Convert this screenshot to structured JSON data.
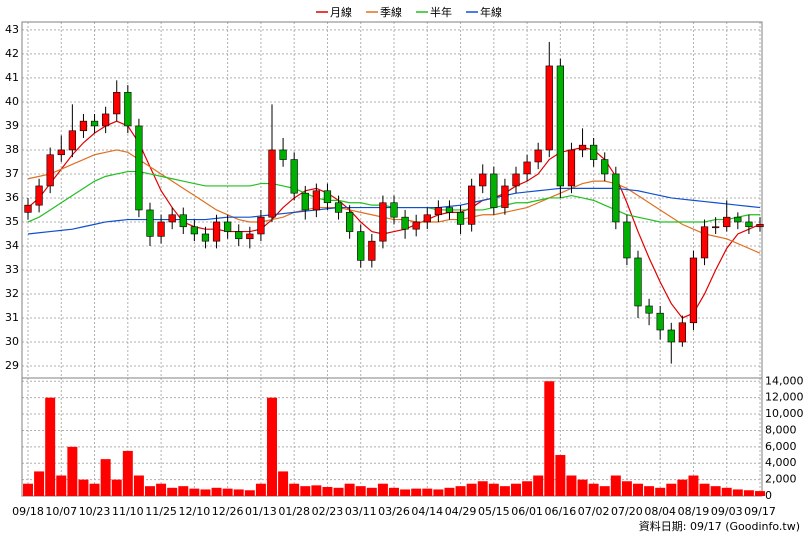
{
  "chart_data": [
    {
      "type": "candlestick",
      "open": [
        35.4,
        35.7,
        36.5,
        37.8,
        38.0,
        38.8,
        39.2,
        39.0,
        39.5,
        40.4,
        39.0,
        35.5,
        34.4,
        35.0,
        35.3,
        34.8,
        34.5,
        34.2,
        35.0,
        34.6,
        34.3,
        34.5,
        35.2,
        38.0,
        37.6,
        36.2,
        35.5,
        36.3,
        35.8,
        35.4,
        34.6,
        33.4,
        34.2,
        35.8,
        35.2,
        34.7,
        35.0,
        35.3,
        35.6,
        35.4,
        34.9,
        36.5,
        37.0,
        35.6,
        36.5,
        37.0,
        37.5,
        38.0,
        41.5,
        36.5,
        38.0,
        38.2,
        37.6,
        37.0,
        35.0,
        33.5,
        31.5,
        31.2,
        30.5,
        30.0,
        30.8,
        33.5,
        34.8,
        34.8,
        35.2,
        35.0,
        34.8
      ],
      "high": [
        36.0,
        36.8,
        38.1,
        38.6,
        39.9,
        39.5,
        39.5,
        39.8,
        40.9,
        40.7,
        39.3,
        35.8,
        35.3,
        35.6,
        35.6,
        35.1,
        34.8,
        35.3,
        35.3,
        34.9,
        34.8,
        35.5,
        39.9,
        38.5,
        37.9,
        36.5,
        36.6,
        36.6,
        36.1,
        35.7,
        34.9,
        34.5,
        36.1,
        36.1,
        35.5,
        35.3,
        35.6,
        35.9,
        35.9,
        35.7,
        36.8,
        37.4,
        37.3,
        36.8,
        37.3,
        37.8,
        38.3,
        42.5,
        41.8,
        38.3,
        38.9,
        38.5,
        37.9,
        37.3,
        35.3,
        33.8,
        31.8,
        31.5,
        30.8,
        31.1,
        33.8,
        35.1,
        35.2,
        35.9,
        35.4,
        35.3,
        35.2
      ],
      "low": [
        35.1,
        35.4,
        36.2,
        37.5,
        37.7,
        38.5,
        38.7,
        38.7,
        39.2,
        38.7,
        35.2,
        34.0,
        34.1,
        34.7,
        34.5,
        34.2,
        33.9,
        33.9,
        34.3,
        34.0,
        33.9,
        34.2,
        35.0,
        37.3,
        35.9,
        35.1,
        35.2,
        35.5,
        35.1,
        34.3,
        33.1,
        33.1,
        33.9,
        34.9,
        34.3,
        34.4,
        34.7,
        35.0,
        35.1,
        34.5,
        34.6,
        36.2,
        35.3,
        35.3,
        36.2,
        36.7,
        37.2,
        37.7,
        36.0,
        36.2,
        37.7,
        37.3,
        36.7,
        34.7,
        33.2,
        31.0,
        30.7,
        30.1,
        29.1,
        29.8,
        30.5,
        33.2,
        34.5,
        34.6,
        34.7,
        34.5,
        34.6
      ],
      "close": [
        35.7,
        36.5,
        37.8,
        38.0,
        38.8,
        39.2,
        39.0,
        39.5,
        40.4,
        39.0,
        35.5,
        34.4,
        35.0,
        35.3,
        34.8,
        34.5,
        34.2,
        35.0,
        34.6,
        34.3,
        34.5,
        35.2,
        38.0,
        37.6,
        36.2,
        35.5,
        36.3,
        35.8,
        35.4,
        34.6,
        33.4,
        34.2,
        35.8,
        35.2,
        34.7,
        35.0,
        35.3,
        35.6,
        35.4,
        34.9,
        36.5,
        37.0,
        35.6,
        36.5,
        37.0,
        37.5,
        38.0,
        41.5,
        36.5,
        38.0,
        38.2,
        37.6,
        37.0,
        35.0,
        33.5,
        31.5,
        31.2,
        30.5,
        30.0,
        30.8,
        33.5,
        34.8,
        34.8,
        35.2,
        35.0,
        34.8,
        34.9
      ],
      "up_color": "#ff0000",
      "down_color": "#00b000",
      "series": [
        {
          "name": "月線",
          "color": "#e00000",
          "values": [
            35.6,
            36.0,
            36.6,
            37.2,
            37.8,
            38.3,
            38.7,
            39.0,
            39.2,
            39.0,
            38.3,
            37.3,
            36.3,
            35.6,
            35.0,
            34.8,
            34.7,
            34.7,
            34.6,
            34.6,
            34.6,
            34.7,
            35.1,
            35.6,
            36.0,
            36.3,
            36.4,
            36.2,
            35.9,
            35.5,
            35.0,
            34.6,
            34.5,
            34.6,
            34.7,
            34.9,
            35.1,
            35.3,
            35.4,
            35.4,
            35.6,
            35.9,
            36.0,
            36.2,
            36.5,
            36.7,
            37.0,
            37.6,
            37.9,
            38.0,
            38.1,
            38.0,
            37.6,
            36.9,
            35.8,
            34.6,
            33.5,
            32.5,
            31.6,
            31.0,
            31.2,
            32.0,
            33.0,
            33.9,
            34.5,
            34.7,
            34.9
          ]
        },
        {
          "name": "季線",
          "color": "#e07020",
          "values": [
            36.8,
            36.9,
            37.0,
            37.2,
            37.4,
            37.6,
            37.8,
            37.9,
            38.0,
            37.9,
            37.6,
            37.3,
            37.0,
            36.7,
            36.4,
            36.1,
            35.8,
            35.5,
            35.3,
            35.1,
            35.0,
            35.0,
            35.1,
            35.2,
            35.4,
            35.5,
            35.6,
            35.6,
            35.6,
            35.5,
            35.4,
            35.3,
            35.2,
            35.1,
            35.1,
            35.0,
            35.0,
            35.0,
            35.1,
            35.1,
            35.2,
            35.3,
            35.3,
            35.4,
            35.5,
            35.6,
            35.8,
            36.0,
            36.2,
            36.4,
            36.6,
            36.7,
            36.7,
            36.6,
            36.4,
            36.1,
            35.8,
            35.5,
            35.2,
            34.9,
            34.7,
            34.5,
            34.4,
            34.3,
            34.1,
            33.9,
            33.7
          ]
        },
        {
          "name": "半年",
          "color": "#20c020",
          "values": [
            35.0,
            35.2,
            35.5,
            35.8,
            36.1,
            36.4,
            36.7,
            36.9,
            37.0,
            37.1,
            37.1,
            37.0,
            36.9,
            36.8,
            36.7,
            36.6,
            36.5,
            36.5,
            36.5,
            36.5,
            36.5,
            36.6,
            36.6,
            36.5,
            36.4,
            36.2,
            36.0,
            35.9,
            35.9,
            35.8,
            35.8,
            35.7,
            35.7,
            35.6,
            35.6,
            35.6,
            35.6,
            35.5,
            35.5,
            35.5,
            35.5,
            35.5,
            35.6,
            35.7,
            35.8,
            35.8,
            35.9,
            36.0,
            36.0,
            36.1,
            36.0,
            35.9,
            35.7,
            35.5,
            35.3,
            35.2,
            35.1,
            35.0,
            35.0,
            35.0,
            35.0,
            35.0,
            35.1,
            35.1,
            35.2,
            35.3,
            35.3
          ]
        },
        {
          "name": "年線",
          "color": "#1050d0",
          "values": [
            34.5,
            34.55,
            34.6,
            34.65,
            34.7,
            34.8,
            34.9,
            35.0,
            35.05,
            35.1,
            35.1,
            35.1,
            35.1,
            35.1,
            35.1,
            35.1,
            35.1,
            35.15,
            35.2,
            35.2,
            35.2,
            35.25,
            35.3,
            35.35,
            35.4,
            35.45,
            35.5,
            35.55,
            35.6,
            35.6,
            35.6,
            35.6,
            35.6,
            35.6,
            35.6,
            35.6,
            35.6,
            35.6,
            35.65,
            35.7,
            35.8,
            35.9,
            36.0,
            36.1,
            36.2,
            36.25,
            36.3,
            36.35,
            36.4,
            36.4,
            36.4,
            36.4,
            36.4,
            36.4,
            36.35,
            36.3,
            36.2,
            36.1,
            36.0,
            35.95,
            35.9,
            35.85,
            35.8,
            35.75,
            35.7,
            35.65,
            35.6
          ]
        }
      ],
      "ylim": [
        28.5,
        43.33
      ],
      "yticks": [
        29,
        30,
        31,
        32,
        33,
        34,
        35,
        36,
        37,
        38,
        39,
        40,
        41,
        42,
        43
      ],
      "grid": true
    },
    {
      "type": "bar",
      "categories": [
        "09/18",
        null,
        null,
        "10/07",
        null,
        null,
        "10/23",
        null,
        null,
        "11/10",
        null,
        null,
        "11/25",
        null,
        null,
        "12/10",
        null,
        null,
        "12/26",
        null,
        null,
        "01/13",
        null,
        null,
        "01/28",
        null,
        null,
        "02/23",
        null,
        null,
        "03/11",
        null,
        null,
        "03/26",
        null,
        null,
        "04/14",
        null,
        null,
        "04/29",
        null,
        null,
        "05/15",
        null,
        null,
        "06/01",
        null,
        null,
        "06/16",
        null,
        null,
        "07/02",
        null,
        null,
        "07/20",
        null,
        null,
        "08/04",
        null,
        null,
        "08/19",
        null,
        null,
        "09/03",
        null,
        null,
        "09/17"
      ],
      "values": [
        1500,
        3000,
        12000,
        2500,
        6000,
        2000,
        1500,
        4500,
        2000,
        5500,
        2500,
        1200,
        1500,
        1000,
        1200,
        900,
        800,
        1000,
        900,
        800,
        700,
        1500,
        12000,
        3000,
        1500,
        1200,
        1300,
        1100,
        1000,
        1500,
        1200,
        1000,
        1500,
        1000,
        800,
        900,
        900,
        800,
        1000,
        1200,
        1500,
        1800,
        1500,
        1200,
        1500,
        1800,
        2500,
        14000,
        5000,
        2500,
        2000,
        1500,
        1200,
        2500,
        1800,
        1500,
        1200,
        1000,
        1500,
        2000,
        2500,
        1500,
        1200,
        1000,
        800,
        700,
        600
      ],
      "color": "#ff0000",
      "ylim": [
        0,
        14400
      ],
      "yticks": [
        0,
        {
          "value": 2000,
          "label": "2,000"
        },
        {
          "value": 4000,
          "label": "4,000"
        },
        {
          "value": 6000,
          "label": "6,000"
        },
        {
          "value": 8000,
          "label": "8,000"
        },
        {
          "value": 10000,
          "label": "10,000"
        },
        {
          "value": 12000,
          "label": "12,000"
        },
        {
          "value": 14000,
          "label": "14,000"
        }
      ],
      "grid": true
    }
  ],
  "footer": "資料日期: 09/17 (Goodinfo.tw)"
}
